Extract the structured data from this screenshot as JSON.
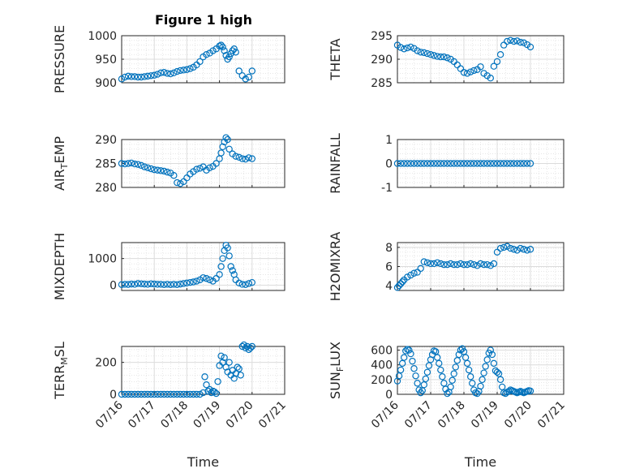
{
  "figure": {
    "title": "Figure 1 high",
    "background": "#ffffff",
    "marker_color": "#0072BD"
  },
  "chart_data": [
    {
      "type": "scatter",
      "ylabel": "PRESSURE",
      "xlabel": "",
      "title": "Figure 1 high",
      "xlim": [
        0,
        5
      ],
      "ylim": [
        900,
        1000
      ],
      "yticks": [
        900,
        950,
        1000
      ],
      "xticks": [
        0,
        1,
        2,
        3,
        4,
        5
      ],
      "xtick_labels": [],
      "grid": true,
      "marker": "circle-open",
      "series": [
        {
          "x": [
            0.0,
            0.1,
            0.2,
            0.3,
            0.4,
            0.5,
            0.6,
            0.7,
            0.8,
            0.9,
            1.0,
            1.1,
            1.2,
            1.3,
            1.4,
            1.5,
            1.6,
            1.7,
            1.8,
            1.9,
            2.0,
            2.1,
            2.2,
            2.3,
            2.4,
            2.5,
            2.6,
            2.7,
            2.8,
            2.9,
            3.0,
            3.05,
            3.1,
            3.15,
            3.2,
            3.25,
            3.3,
            3.35,
            3.4,
            3.45,
            3.5,
            3.6,
            3.7,
            3.8,
            3.9,
            4.0
          ],
          "values": [
            908,
            912,
            914,
            913,
            913,
            912,
            912,
            913,
            914,
            915,
            916,
            918,
            921,
            922,
            920,
            919,
            921,
            924,
            926,
            927,
            928,
            930,
            933,
            938,
            945,
            955,
            960,
            963,
            968,
            972,
            978,
            980,
            976,
            968,
            958,
            950,
            955,
            962,
            968,
            972,
            965,
            925,
            915,
            908,
            912,
            925
          ]
        }
      ]
    },
    {
      "type": "scatter",
      "ylabel": "THETA",
      "xlabel": "",
      "xlim": [
        0,
        5
      ],
      "ylim": [
        285,
        295
      ],
      "yticks": [
        285,
        290,
        295
      ],
      "xticks": [
        0,
        1,
        2,
        3,
        4,
        5
      ],
      "xtick_labels": [],
      "grid": true,
      "marker": "circle-open",
      "series": [
        {
          "x": [
            0.0,
            0.1,
            0.2,
            0.3,
            0.4,
            0.5,
            0.6,
            0.7,
            0.8,
            0.9,
            1.0,
            1.1,
            1.2,
            1.3,
            1.4,
            1.5,
            1.6,
            1.7,
            1.8,
            1.9,
            2.0,
            2.1,
            2.2,
            2.3,
            2.4,
            2.5,
            2.6,
            2.7,
            2.8,
            2.9,
            3.0,
            3.1,
            3.2,
            3.3,
            3.4,
            3.5,
            3.6,
            3.7,
            3.8,
            3.9,
            4.0
          ],
          "values": [
            293,
            292.5,
            292.2,
            292.4,
            292.6,
            292.3,
            291.8,
            291.5,
            291.4,
            291.2,
            291.0,
            290.8,
            290.6,
            290.5,
            290.5,
            290.3,
            290.0,
            289.5,
            288.8,
            288.0,
            287.2,
            287.0,
            287.3,
            287.6,
            287.8,
            288.4,
            287.0,
            286.5,
            286.0,
            288.5,
            289.5,
            291.0,
            293.0,
            293.8,
            294.0,
            293.8,
            293.9,
            293.6,
            293.5,
            293.1,
            292.6
          ]
        }
      ]
    },
    {
      "type": "scatter",
      "ylabel": "AIR_TEMP",
      "xlabel": "",
      "xlim": [
        0,
        5
      ],
      "ylim": [
        280,
        290
      ],
      "yticks": [
        280,
        285,
        290
      ],
      "xticks": [
        0,
        1,
        2,
        3,
        4,
        5
      ],
      "xtick_labels": [],
      "grid": true,
      "marker": "circle-open",
      "series": [
        {
          "x": [
            0.0,
            0.1,
            0.2,
            0.3,
            0.4,
            0.5,
            0.6,
            0.7,
            0.8,
            0.9,
            1.0,
            1.1,
            1.2,
            1.3,
            1.4,
            1.5,
            1.6,
            1.7,
            1.8,
            1.9,
            2.0,
            2.1,
            2.2,
            2.3,
            2.4,
            2.5,
            2.6,
            2.7,
            2.8,
            2.9,
            3.0,
            3.05,
            3.1,
            3.15,
            3.2,
            3.25,
            3.3,
            3.4,
            3.5,
            3.6,
            3.7,
            3.8,
            3.9,
            4.0
          ],
          "values": [
            285,
            284.9,
            285,
            285.1,
            284.9,
            284.8,
            284.6,
            284.3,
            284.1,
            283.9,
            283.7,
            283.6,
            283.5,
            283.4,
            283.2,
            283.0,
            282.5,
            281.0,
            280.8,
            281.2,
            282.0,
            282.8,
            283.3,
            283.8,
            284.0,
            284.3,
            283.6,
            284.1,
            284.4,
            285.0,
            286.0,
            287.2,
            288.5,
            289.5,
            290.4,
            290.0,
            288.0,
            287.0,
            286.5,
            286.3,
            286.0,
            285.9,
            286.2,
            286.0
          ]
        }
      ]
    },
    {
      "type": "scatter",
      "ylabel": "RAINFALL",
      "xlabel": "",
      "xlim": [
        0,
        5
      ],
      "ylim": [
        -1,
        1
      ],
      "yticks": [
        -1,
        0,
        1
      ],
      "xticks": [
        0,
        1,
        2,
        3,
        4,
        5
      ],
      "xtick_labels": [],
      "grid": true,
      "marker": "circle-open",
      "series": [
        {
          "x": [
            0.0,
            0.1,
            0.2,
            0.3,
            0.4,
            0.5,
            0.6,
            0.7,
            0.8,
            0.9,
            1.0,
            1.1,
            1.2,
            1.3,
            1.4,
            1.5,
            1.6,
            1.7,
            1.8,
            1.9,
            2.0,
            2.1,
            2.2,
            2.3,
            2.4,
            2.5,
            2.6,
            2.7,
            2.8,
            2.9,
            3.0,
            3.1,
            3.2,
            3.3,
            3.4,
            3.5,
            3.6,
            3.7,
            3.8,
            3.9,
            4.0
          ],
          "values": [
            0,
            0,
            0,
            0,
            0,
            0,
            0,
            0,
            0,
            0,
            0,
            0,
            0,
            0,
            0,
            0,
            0,
            0,
            0,
            0,
            0,
            0,
            0,
            0,
            0,
            0,
            0,
            0,
            0,
            0,
            0,
            0,
            0,
            0,
            0,
            0,
            0,
            0,
            0,
            0,
            0
          ]
        }
      ]
    },
    {
      "type": "scatter",
      "ylabel": "MIXDEPTH",
      "xlabel": "",
      "xlim": [
        0,
        5
      ],
      "ylim": [
        -200,
        1600
      ],
      "yticks": [
        0,
        1000
      ],
      "xticks": [
        0,
        1,
        2,
        3,
        4,
        5
      ],
      "xtick_labels": [],
      "grid": true,
      "marker": "circle-open",
      "series": [
        {
          "x": [
            0.0,
            0.1,
            0.2,
            0.3,
            0.4,
            0.5,
            0.6,
            0.7,
            0.8,
            0.9,
            1.0,
            1.1,
            1.2,
            1.3,
            1.4,
            1.5,
            1.6,
            1.7,
            1.8,
            1.9,
            2.0,
            2.1,
            2.2,
            2.3,
            2.4,
            2.5,
            2.6,
            2.7,
            2.8,
            2.9,
            3.0,
            3.05,
            3.1,
            3.15,
            3.2,
            3.25,
            3.3,
            3.35,
            3.4,
            3.45,
            3.5,
            3.6,
            3.7,
            3.8,
            3.9,
            4.0
          ],
          "values": [
            20,
            30,
            25,
            40,
            30,
            60,
            50,
            40,
            30,
            50,
            40,
            30,
            30,
            20,
            30,
            20,
            30,
            20,
            40,
            60,
            80,
            100,
            120,
            150,
            200,
            280,
            250,
            200,
            150,
            250,
            400,
            700,
            1000,
            1300,
            1500,
            1400,
            1100,
            700,
            550,
            400,
            200,
            80,
            30,
            20,
            60,
            100
          ]
        }
      ]
    },
    {
      "type": "scatter",
      "ylabel": "H2OMIXRA",
      "xlabel": "",
      "xlim": [
        0,
        5
      ],
      "ylim": [
        3.5,
        8.5
      ],
      "yticks": [
        4,
        6,
        8
      ],
      "xticks": [
        0,
        1,
        2,
        3,
        4,
        5
      ],
      "xtick_labels": [],
      "grid": true,
      "marker": "circle-open",
      "series": [
        {
          "x": [
            0.0,
            0.05,
            0.1,
            0.15,
            0.2,
            0.3,
            0.4,
            0.5,
            0.6,
            0.7,
            0.8,
            0.9,
            1.0,
            1.1,
            1.2,
            1.3,
            1.4,
            1.5,
            1.6,
            1.7,
            1.8,
            1.9,
            2.0,
            2.1,
            2.2,
            2.3,
            2.4,
            2.5,
            2.6,
            2.7,
            2.8,
            2.9,
            3.0,
            3.1,
            3.2,
            3.3,
            3.4,
            3.5,
            3.6,
            3.7,
            3.8,
            3.9,
            4.0
          ],
          "values": [
            3.8,
            4.0,
            4.2,
            4.4,
            4.6,
            4.9,
            5.1,
            5.3,
            5.4,
            5.8,
            6.5,
            6.4,
            6.3,
            6.3,
            6.4,
            6.3,
            6.2,
            6.2,
            6.3,
            6.2,
            6.2,
            6.3,
            6.2,
            6.2,
            6.3,
            6.2,
            6.1,
            6.3,
            6.2,
            6.2,
            6.1,
            6.3,
            7.5,
            7.9,
            8.0,
            8.1,
            7.9,
            7.8,
            7.7,
            7.9,
            7.8,
            7.7,
            7.8
          ]
        }
      ]
    },
    {
      "type": "scatter",
      "ylabel": "TERR_MSL",
      "xlabel": "Time",
      "xlim": [
        0,
        5
      ],
      "ylim": [
        0,
        300
      ],
      "yticks": [
        0,
        200
      ],
      "xticks": [
        0,
        1,
        2,
        3,
        4,
        5
      ],
      "xtick_labels": [
        "07/16",
        "07/17",
        "07/18",
        "07/19",
        "07/20",
        "07/21"
      ],
      "grid": true,
      "marker": "circle-open",
      "series": [
        {
          "x": [
            0.0,
            0.1,
            0.2,
            0.3,
            0.4,
            0.5,
            0.6,
            0.7,
            0.8,
            0.9,
            1.0,
            1.1,
            1.2,
            1.3,
            1.4,
            1.5,
            1.6,
            1.7,
            1.8,
            1.9,
            2.0,
            2.1,
            2.2,
            2.3,
            2.4,
            2.5,
            2.55,
            2.6,
            2.65,
            2.7,
            2.75,
            2.8,
            2.85,
            2.9,
            2.95,
            3.0,
            3.05,
            3.1,
            3.15,
            3.2,
            3.25,
            3.3,
            3.35,
            3.4,
            3.45,
            3.5,
            3.55,
            3.6,
            3.65,
            3.7,
            3.75,
            3.8,
            3.85,
            3.9,
            3.95,
            4.0
          ],
          "values": [
            0,
            0,
            0,
            0,
            0,
            0,
            0,
            0,
            0,
            0,
            0,
            0,
            0,
            0,
            0,
            0,
            0,
            0,
            0,
            0,
            0,
            0,
            0,
            0,
            0,
            10,
            110,
            60,
            20,
            30,
            10,
            20,
            15,
            5,
            80,
            180,
            240,
            200,
            230,
            170,
            140,
            200,
            120,
            150,
            100,
            130,
            170,
            160,
            120,
            300,
            310,
            290,
            300,
            280,
            290,
            300
          ]
        }
      ]
    },
    {
      "type": "scatter",
      "ylabel": "SUN_FLUX",
      "xlabel": "Time",
      "xlim": [
        0,
        5
      ],
      "ylim": [
        0,
        650
      ],
      "yticks": [
        0,
        200,
        400,
        600
      ],
      "xticks": [
        0,
        1,
        2,
        3,
        4,
        5
      ],
      "xtick_labels": [
        "07/16",
        "07/17",
        "07/18",
        "07/19",
        "07/20",
        "07/21"
      ],
      "grid": true,
      "marker": "circle-open",
      "series": [
        {
          "x": [
            0.0,
            0.05,
            0.1,
            0.15,
            0.2,
            0.25,
            0.3,
            0.35,
            0.4,
            0.45,
            0.5,
            0.55,
            0.6,
            0.65,
            0.7,
            0.75,
            0.8,
            0.85,
            0.9,
            0.95,
            1.0,
            1.05,
            1.1,
            1.15,
            1.2,
            1.25,
            1.3,
            1.35,
            1.4,
            1.45,
            1.5,
            1.55,
            1.6,
            1.65,
            1.7,
            1.75,
            1.8,
            1.85,
            1.9,
            1.95,
            2.0,
            2.05,
            2.1,
            2.15,
            2.2,
            2.25,
            2.3,
            2.35,
            2.4,
            2.45,
            2.5,
            2.55,
            2.6,
            2.65,
            2.7,
            2.75,
            2.8,
            2.85,
            2.9,
            2.95,
            3.0,
            3.05,
            3.1,
            3.15,
            3.2,
            3.25,
            3.3,
            3.35,
            3.4,
            3.45,
            3.5,
            3.55,
            3.6,
            3.65,
            3.7,
            3.75,
            3.8,
            3.85,
            3.9,
            3.95,
            4.0
          ],
          "values": [
            180,
            250,
            330,
            420,
            500,
            590,
            610,
            600,
            550,
            450,
            350,
            250,
            150,
            60,
            20,
            50,
            130,
            210,
            300,
            390,
            470,
            540,
            590,
            580,
            500,
            420,
            330,
            240,
            150,
            70,
            10,
            30,
            100,
            190,
            280,
            370,
            460,
            540,
            600,
            620,
            580,
            500,
            420,
            330,
            240,
            150,
            60,
            20,
            10,
            40,
            110,
            200,
            290,
            380,
            470,
            560,
            600,
            540,
            420,
            320,
            300,
            280,
            200,
            100,
            20,
            10,
            30,
            40,
            60,
            50,
            40,
            30,
            20,
            30,
            40,
            30,
            20,
            30,
            40,
            50,
            45
          ]
        }
      ]
    }
  ]
}
